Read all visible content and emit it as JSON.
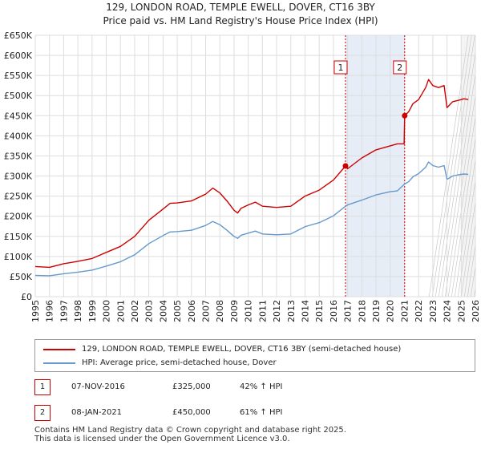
{
  "title": "129, LONDON ROAD, TEMPLE EWELL, DOVER, CT16 3BY",
  "subtitle": "Price paid vs. HM Land Registry's House Price Index (HPI)",
  "colors": {
    "property": "#cc0000",
    "hpi": "#6699cc",
    "marker_border": "#cc0000",
    "shade": "#dde6f4",
    "grid": "#dddddd"
  },
  "chart_data": {
    "type": "line",
    "title": "129, LONDON ROAD, TEMPLE EWELL, DOVER, CT16 3BY",
    "subtitle": "Price paid vs. HM Land Registry's House Price Index (HPI)",
    "xlabel": "",
    "ylabel": "",
    "xlim": [
      1995,
      2026
    ],
    "ylim": [
      0,
      650000
    ],
    "y_ticks": [
      0,
      50000,
      100000,
      150000,
      200000,
      250000,
      300000,
      350000,
      400000,
      450000,
      500000,
      550000,
      600000,
      650000
    ],
    "y_tick_labels": [
      "£0",
      "£50K",
      "£100K",
      "£150K",
      "£200K",
      "£250K",
      "£300K",
      "£350K",
      "£400K",
      "£450K",
      "£500K",
      "£550K",
      "£600K",
      "£650K"
    ],
    "x_ticks": [
      1995,
      1996,
      1997,
      1998,
      1999,
      2000,
      2001,
      2002,
      2003,
      2004,
      2005,
      2006,
      2007,
      2008,
      2009,
      2010,
      2011,
      2012,
      2013,
      2014,
      2015,
      2016,
      2017,
      2018,
      2019,
      2020,
      2021,
      2022,
      2023,
      2024,
      2025,
      2026
    ],
    "x_tick_labels": [
      "1995",
      "1996",
      "1997",
      "1998",
      "1999",
      "2000",
      "2001",
      "2002",
      "2003",
      "2004",
      "2005",
      "2006",
      "2007",
      "2008",
      "2009",
      "2010",
      "2011",
      "2012",
      "2013",
      "2014",
      "2015",
      "2016",
      "2017",
      "2018",
      "2019",
      "2020",
      "2021",
      "2022",
      "2023",
      "2024",
      "2025",
      "2026"
    ],
    "grid": true,
    "series": [
      {
        "name": "129, LONDON ROAD, TEMPLE EWELL, DOVER, CT16 3BY (semi-detached house)",
        "color": "#cc0000",
        "x": [
          1995.0,
          1996.0,
          1997.0,
          1998.0,
          1999.0,
          2000.0,
          2001.0,
          2002.0,
          2003.0,
          2004.0,
          2004.5,
          2005.0,
          2006.0,
          2007.0,
          2007.5,
          2008.0,
          2008.5,
          2009.0,
          2009.25,
          2009.5,
          2010.0,
          2010.5,
          2011.0,
          2012.0,
          2013.0,
          2014.0,
          2015.0,
          2016.0,
          2016.85,
          2017.0,
          2018.0,
          2019.0,
          2020.0,
          2020.5,
          2020.98,
          2021.02,
          2021.3,
          2021.6,
          2022.0,
          2022.5,
          2022.7,
          2023.0,
          2023.4,
          2023.8,
          2024.0,
          2024.4,
          2024.8,
          2025.2,
          2025.5
        ],
        "values": [
          75000,
          73000,
          82000,
          88000,
          95000,
          110000,
          125000,
          150000,
          190000,
          218000,
          232000,
          233000,
          238000,
          255000,
          270000,
          258000,
          238000,
          215000,
          208000,
          220000,
          228000,
          235000,
          225000,
          222000,
          225000,
          250000,
          265000,
          290000,
          325000,
          318000,
          345000,
          365000,
          375000,
          380000,
          380000,
          450000,
          460000,
          480000,
          490000,
          520000,
          540000,
          525000,
          520000,
          525000,
          470000,
          485000,
          488000,
          492000,
          490000
        ]
      },
      {
        "name": "HPI: Average price, semi-detached house, Dover",
        "color": "#6699cc",
        "x": [
          1995.0,
          1996.0,
          1997.0,
          1998.0,
          1999.0,
          2000.0,
          2001.0,
          2002.0,
          2003.0,
          2004.0,
          2004.5,
          2005.0,
          2006.0,
          2007.0,
          2007.5,
          2008.0,
          2008.5,
          2009.0,
          2009.25,
          2009.5,
          2010.0,
          2010.5,
          2011.0,
          2012.0,
          2013.0,
          2014.0,
          2015.0,
          2016.0,
          2016.85,
          2017.0,
          2018.0,
          2019.0,
          2020.0,
          2020.5,
          2021.0,
          2021.3,
          2021.6,
          2022.0,
          2022.5,
          2022.7,
          2023.0,
          2023.4,
          2023.8,
          2024.0,
          2024.4,
          2024.8,
          2025.2,
          2025.5
        ],
        "values": [
          53000,
          52000,
          57000,
          61000,
          66000,
          76000,
          87000,
          104000,
          132000,
          152000,
          161000,
          162000,
          165000,
          177000,
          187000,
          179000,
          165000,
          150000,
          145000,
          153000,
          158000,
          163000,
          156000,
          154000,
          156000,
          174000,
          184000,
          201000,
          225000,
          228000,
          240000,
          253000,
          261000,
          263000,
          280000,
          286000,
          298000,
          306000,
          322000,
          335000,
          326000,
          322000,
          326000,
          292000,
          300000,
          303000,
          305000,
          304000
        ]
      }
    ],
    "sales": [
      {
        "label": "1",
        "x": 2016.85,
        "value": 325000
      },
      {
        "label": "2",
        "x": 2021.02,
        "value": 450000
      }
    ],
    "shaded_range": [
      2016.85,
      2021.02
    ],
    "hatched_from": 2025.0
  },
  "legend": {
    "items": [
      {
        "label": "129, LONDON ROAD, TEMPLE EWELL, DOVER, CT16 3BY (semi-detached house)"
      },
      {
        "label": "HPI: Average price, semi-detached house, Dover"
      }
    ]
  },
  "transactions": [
    {
      "num": "1",
      "date": "07-NOV-2016",
      "price": "£325,000",
      "hpi": "42% ↑ HPI"
    },
    {
      "num": "2",
      "date": "08-JAN-2021",
      "price": "£450,000",
      "hpi": "61% ↑ HPI"
    }
  ],
  "footer": {
    "line1": "Contains HM Land Registry data © Crown copyright and database right 2025.",
    "line2": "This data is licensed under the Open Government Licence v3.0."
  }
}
